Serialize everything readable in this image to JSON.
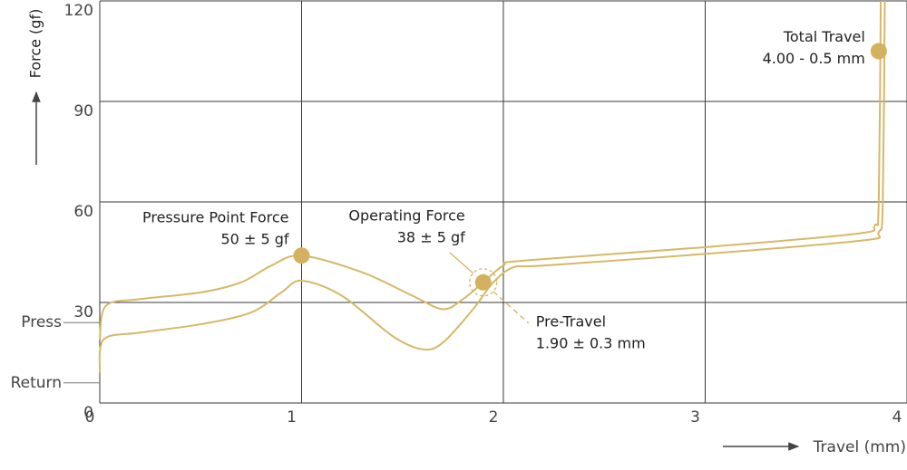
{
  "chart_data": {
    "type": "line",
    "ylabel": "Force (gf)",
    "xlabel": "Travel (mm)",
    "xlim": [
      0,
      4
    ],
    "xticks": [
      0,
      1,
      2,
      3,
      4
    ],
    "ylim": [
      0,
      120
    ],
    "yticks": [
      0,
      30,
      60,
      90,
      120
    ],
    "grid": true,
    "series": [
      {
        "color": "#d6b867",
        "x": [
          0,
          0.03,
          0.2,
          0.5,
          0.7,
          0.85,
          1.0,
          1.3,
          1.55,
          1.7,
          1.8,
          1.9,
          2.0,
          2.1,
          3.0,
          3.75,
          3.84,
          3.86,
          3.87
        ],
        "values": [
          19,
          29,
          31,
          33,
          36,
          41,
          44,
          39,
          32,
          28,
          31,
          36,
          41,
          42.5,
          46.5,
          50.5,
          53,
          60,
          120
        ]
      },
      {
        "color": "#d6b867",
        "x": [
          0,
          0.02,
          0.2,
          0.5,
          0.75,
          0.9,
          1.0,
          1.2,
          1.45,
          1.6,
          1.7,
          1.85,
          1.95,
          2.05,
          2.2,
          3.0,
          3.78,
          3.86,
          3.88,
          3.89
        ],
        "values": [
          9,
          19,
          21,
          23.5,
          27,
          33,
          36.5,
          32,
          20,
          16,
          18,
          28,
          36,
          40.5,
          41,
          44.5,
          48.5,
          51,
          60,
          120
        ]
      }
    ],
    "y_annotations": [
      {
        "label": "Press",
        "value": 24
      },
      {
        "label": "Return",
        "value": 6
      }
    ],
    "points": [
      {
        "x": 1.0,
        "y": 44,
        "color": "#d4b15f",
        "label": [
          "Pressure Point Force",
          "50 ± 5 gf"
        ]
      },
      {
        "x": 1.9,
        "y": 36,
        "color": "#d4b15f",
        "label": [
          "Operating Force",
          "38 ± 5 gf"
        ],
        "label2": [
          "Pre-Travel",
          "1.90 ± 0.3 mm"
        ]
      },
      {
        "x": 3.86,
        "y": 105,
        "color": "#d4b15f",
        "label": [
          "Total Travel",
          "4.00 - 0.5 mm"
        ]
      }
    ]
  }
}
